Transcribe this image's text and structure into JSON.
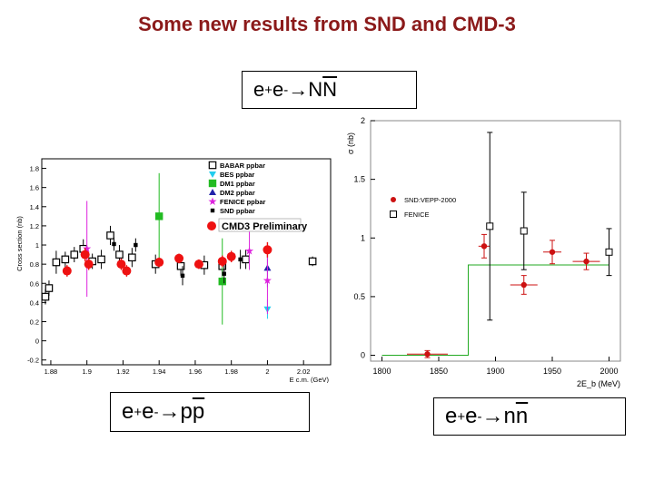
{
  "title": "Some new results from SND  and CMD-3",
  "labels": {
    "nn_bar": {
      "pre": "e",
      "sup1": "+",
      "mid": "e",
      "sup2": "-",
      "arrow": " → ",
      "p1": "N",
      "p2": "N"
    },
    "ppbar": {
      "pre": "e",
      "sup1": "+",
      "mid": "e",
      "sup2": "-",
      "arrow": " → ",
      "p1": "p",
      "p2": "p"
    },
    "nnbar": {
      "pre": "e",
      "sup1": "+",
      "mid": "e",
      "sup2": "-",
      "arrow": " → ",
      "p1": "n",
      "p2": "n"
    }
  },
  "colors": {
    "title": "#8b1a1a",
    "cmd3": "#ee1111",
    "babar": "#000000",
    "bes": "#22ccee",
    "dm1": "#22bb22",
    "dm2": "#2222aa",
    "fenice": "#dd22dd",
    "snd": "#000000",
    "step": "#22aa22"
  },
  "chart_data": [
    {
      "type": "scatter",
      "title": "",
      "xlabel": "E c.m. (GeV)",
      "ylabel": "Cross section (nb)",
      "xlim": [
        1.875,
        2.035
      ],
      "ylim": [
        -0.25,
        1.9
      ],
      "xticks": [
        "1.88",
        "1.9",
        "1.92",
        "1.94",
        "1.96",
        "1.98",
        "2",
        "2.02"
      ],
      "yticks": [
        "-0.2",
        "0",
        "0.2",
        "0.4",
        "0.6",
        "0.8",
        "1",
        "1.2",
        "1.4",
        "1.6",
        "1.8"
      ],
      "legend": {
        "entries": [
          "BABAR ppbar",
          "BES ppbar",
          "DM1 ppbar",
          "DM2 ppbar",
          "FENICE ppbar",
          "SND ppbar"
        ],
        "highlight": "CMD3 Preliminary",
        "position": "top-right"
      },
      "series": [
        {
          "name": "BABAR ppbar",
          "marker": "open-square",
          "color": "#000000",
          "points": [
            {
              "x": 1.877,
              "y": 0.46,
              "e": 0.08
            },
            {
              "x": 1.879,
              "y": 0.55,
              "e": 0.08
            },
            {
              "x": 1.883,
              "y": 0.82,
              "e": 0.12
            },
            {
              "x": 1.888,
              "y": 0.85,
              "e": 0.08
            },
            {
              "x": 1.893,
              "y": 0.9,
              "e": 0.08
            },
            {
              "x": 1.898,
              "y": 0.96,
              "e": 0.1
            },
            {
              "x": 1.903,
              "y": 0.83,
              "e": 0.08
            },
            {
              "x": 1.908,
              "y": 0.85,
              "e": 0.1
            },
            {
              "x": 1.913,
              "y": 1.1,
              "e": 0.1
            },
            {
              "x": 1.918,
              "y": 0.9,
              "e": 0.1
            },
            {
              "x": 1.925,
              "y": 0.87,
              "e": 0.1
            },
            {
              "x": 1.938,
              "y": 0.8,
              "e": 0.1
            },
            {
              "x": 1.952,
              "y": 0.78,
              "e": 0.1
            },
            {
              "x": 1.965,
              "y": 0.79,
              "e": 0.1
            },
            {
              "x": 1.975,
              "y": 0.78,
              "e": 0.1
            },
            {
              "x": 1.988,
              "y": 0.85,
              "e": 0.1
            },
            {
              "x": 2.025,
              "y": 0.83,
              "e": 0.05
            }
          ]
        },
        {
          "name": "BES ppbar",
          "marker": "triangle-down",
          "color": "#22ccee",
          "points": [
            {
              "x": 2.0,
              "y": 0.33,
              "e": 0.1
            }
          ]
        },
        {
          "name": "DM1 ppbar",
          "marker": "filled-square",
          "color": "#22bb22",
          "points": [
            {
              "x": 1.94,
              "y": 1.3,
              "e": 0.45
            },
            {
              "x": 1.975,
              "y": 0.62,
              "e": 0.45
            }
          ]
        },
        {
          "name": "DM2 ppbar",
          "marker": "triangle-up",
          "color": "#2222aa",
          "points": [
            {
              "x": 2.0,
              "y": 0.76,
              "e": 0.2
            }
          ]
        },
        {
          "name": "FENICE ppbar",
          "marker": "star",
          "color": "#dd22dd",
          "points": [
            {
              "x": 1.9,
              "y": 0.96,
              "e": 0.5
            },
            {
              "x": 1.99,
              "y": 0.94,
              "e": 0.2
            },
            {
              "x": 2.0,
              "y": 0.63,
              "e": 0.35
            }
          ]
        },
        {
          "name": "SND ppbar",
          "marker": "small-filled-square",
          "color": "#000000",
          "points": [
            {
              "x": 1.915,
              "y": 1.01,
              "e": 0.07
            },
            {
              "x": 1.927,
              "y": 1.0,
              "e": 0.07
            },
            {
              "x": 1.953,
              "y": 0.68,
              "e": 0.1
            },
            {
              "x": 1.976,
              "y": 0.7,
              "e": 0.1
            },
            {
              "x": 1.985,
              "y": 0.85,
              "e": 0.1
            }
          ]
        },
        {
          "name": "CMD3 Preliminary",
          "marker": "filled-circle",
          "color": "#ee1111",
          "points": [
            {
              "x": 1.889,
              "y": 0.73,
              "e": 0.06
            },
            {
              "x": 1.899,
              "y": 0.9,
              "e": 0.07
            },
            {
              "x": 1.901,
              "y": 0.8,
              "e": 0.06
            },
            {
              "x": 1.919,
              "y": 0.8,
              "e": 0.06
            },
            {
              "x": 1.922,
              "y": 0.73,
              "e": 0.06
            },
            {
              "x": 1.94,
              "y": 0.82,
              "e": 0.05
            },
            {
              "x": 1.951,
              "y": 0.86,
              "e": 0.05
            },
            {
              "x": 1.962,
              "y": 0.8,
              "e": 0.05
            },
            {
              "x": 1.975,
              "y": 0.83,
              "e": 0.06
            },
            {
              "x": 1.98,
              "y": 0.88,
              "e": 0.06
            },
            {
              "x": 2.0,
              "y": 0.95,
              "e": 0.08
            }
          ]
        }
      ]
    },
    {
      "type": "scatter",
      "title": "",
      "xlabel": "2E_b (MeV)",
      "ylabel": "σ (nb)",
      "xlim": [
        1790,
        2010
      ],
      "ylim": [
        -0.05,
        2.0
      ],
      "xticks": [
        "1800",
        "1850",
        "1900",
        "1950",
        "2000"
      ],
      "yticks": [
        "0",
        "0.5",
        "1",
        "1.5",
        "2"
      ],
      "legend": {
        "entries": [
          "SND:VEPP-2000",
          "FENICE"
        ],
        "position": "top-left"
      },
      "step": {
        "x": [
          1800,
          1876,
          1876,
          2000
        ],
        "y": [
          0,
          0,
          0.77,
          0.77
        ],
        "color": "#22aa22"
      },
      "series": [
        {
          "name": "SND:VEPP-2000",
          "marker": "filled-circle",
          "color": "#cc1111",
          "points": [
            {
              "x": 1840,
              "y": 0.01,
              "ex": 18,
              "ey": 0.03
            },
            {
              "x": 1890,
              "y": 0.93,
              "ex": 5,
              "ey": 0.1
            },
            {
              "x": 1925,
              "y": 0.6,
              "ex": 12,
              "ey": 0.08
            },
            {
              "x": 1950,
              "y": 0.88,
              "ex": 8,
              "ey": 0.1
            },
            {
              "x": 1980,
              "y": 0.8,
              "ex": 12,
              "ey": 0.07
            }
          ]
        },
        {
          "name": "FENICE",
          "marker": "open-square",
          "color": "#000000",
          "points": [
            {
              "x": 1895,
              "y": 1.1,
              "ey": 0.8
            },
            {
              "x": 1925,
              "y": 1.06,
              "ey": 0.33
            },
            {
              "x": 2000,
              "y": 0.88,
              "ey": 0.2
            }
          ]
        }
      ]
    }
  ]
}
